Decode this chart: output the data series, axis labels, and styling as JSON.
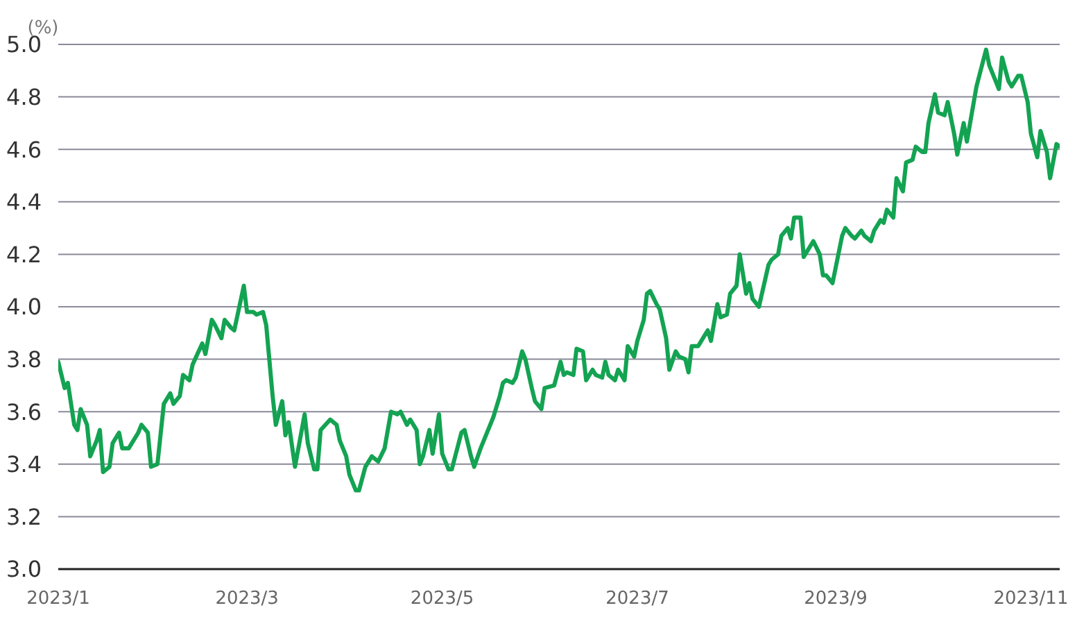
{
  "chart_data": {
    "type": "line",
    "ylabel": "(%)",
    "x": [
      "2023-01-01",
      "2023-01-03",
      "2023-01-04",
      "2023-01-06",
      "2023-01-07",
      "2023-01-08",
      "2023-01-10",
      "2023-01-11",
      "2023-01-13",
      "2023-01-14",
      "2023-01-15",
      "2023-01-17",
      "2023-01-18",
      "2023-01-20",
      "2023-01-21",
      "2023-01-23",
      "2023-01-26",
      "2023-01-27",
      "2023-01-29",
      "2023-01-30",
      "2023-02-01",
      "2023-02-03",
      "2023-02-05",
      "2023-02-06",
      "2023-02-08",
      "2023-02-09",
      "2023-02-11",
      "2023-02-12",
      "2023-02-15",
      "2023-02-16",
      "2023-02-18",
      "2023-02-19",
      "2023-02-21",
      "2023-02-22",
      "2023-02-24",
      "2023-02-25",
      "2023-02-28",
      "2023-03-01",
      "2023-03-03",
      "2023-03-04",
      "2023-03-06",
      "2023-03-07",
      "2023-03-09",
      "2023-03-10",
      "2023-03-12",
      "2023-03-13",
      "2023-03-14",
      "2023-03-16",
      "2023-03-19",
      "2023-03-20",
      "2023-03-22",
      "2023-03-23",
      "2023-03-24",
      "2023-03-27",
      "2023-03-29",
      "2023-03-30",
      "2023-04-01",
      "2023-04-02",
      "2023-04-04",
      "2023-04-05",
      "2023-04-07",
      "2023-04-09",
      "2023-04-11",
      "2023-04-13",
      "2023-04-15",
      "2023-04-17",
      "2023-04-18",
      "2023-04-20",
      "2023-04-21",
      "2023-04-23",
      "2023-04-24",
      "2023-04-25",
      "2023-04-27",
      "2023-04-28",
      "2023-04-30",
      "2023-05-01",
      "2023-05-03",
      "2023-05-04",
      "2023-05-07",
      "2023-05-08",
      "2023-05-10",
      "2023-05-11",
      "2023-05-13",
      "2023-05-17",
      "2023-05-19",
      "2023-05-20",
      "2023-05-21",
      "2023-05-23",
      "2023-05-24",
      "2023-05-26",
      "2023-05-27",
      "2023-05-29",
      "2023-05-30",
      "2023-06-01",
      "2023-06-02",
      "2023-06-05",
      "2023-06-07",
      "2023-06-08",
      "2023-06-09",
      "2023-06-11",
      "2023-06-12",
      "2023-06-14",
      "2023-06-15",
      "2023-06-17",
      "2023-06-18",
      "2023-06-20",
      "2023-06-21",
      "2023-06-22",
      "2023-06-24",
      "2023-06-25",
      "2023-06-27",
      "2023-06-28",
      "2023-06-30",
      "2023-07-01",
      "2023-07-03",
      "2023-07-04",
      "2023-07-05",
      "2023-07-07",
      "2023-07-08",
      "2023-07-10",
      "2023-07-11",
      "2023-07-13",
      "2023-07-14",
      "2023-07-16",
      "2023-07-17",
      "2023-07-18",
      "2023-07-20",
      "2023-07-21",
      "2023-07-23",
      "2023-07-24",
      "2023-07-26",
      "2023-07-27",
      "2023-07-29",
      "2023-07-30",
      "2023-08-01",
      "2023-08-02",
      "2023-08-04",
      "2023-08-05",
      "2023-08-06",
      "2023-08-08",
      "2023-08-11",
      "2023-08-12",
      "2023-08-14",
      "2023-08-15",
      "2023-08-17",
      "2023-08-18",
      "2023-08-19",
      "2023-08-21",
      "2023-08-22",
      "2023-08-24",
      "2023-08-25",
      "2023-08-27",
      "2023-08-28",
      "2023-08-29",
      "2023-08-31",
      "2023-09-03",
      "2023-09-04",
      "2023-09-06",
      "2023-09-07",
      "2023-09-09",
      "2023-09-10",
      "2023-09-12",
      "2023-09-13",
      "2023-09-15",
      "2023-09-16",
      "2023-09-17",
      "2023-09-19",
      "2023-09-20",
      "2023-09-22",
      "2023-09-23",
      "2023-09-25",
      "2023-09-26",
      "2023-09-28",
      "2023-09-29",
      "2023-09-30",
      "2023-10-02",
      "2023-10-03",
      "2023-10-05",
      "2023-10-06",
      "2023-10-08",
      "2023-10-09",
      "2023-10-11",
      "2023-10-12",
      "2023-10-13",
      "2023-10-15",
      "2023-10-18",
      "2023-10-19",
      "2023-10-21",
      "2023-10-22",
      "2023-10-23",
      "2023-10-25",
      "2023-10-26",
      "2023-10-28",
      "2023-10-29",
      "2023-10-31",
      "2023-11-01",
      "2023-11-03",
      "2023-11-04",
      "2023-11-06",
      "2023-11-07",
      "2023-11-09",
      "2023-11-10"
    ],
    "series": [
      {
        "color": "#13a352",
        "values": [
          3.79,
          3.69,
          3.71,
          3.55,
          3.53,
          3.61,
          3.55,
          3.43,
          3.49,
          3.53,
          3.37,
          3.39,
          3.48,
          3.52,
          3.46,
          3.46,
          3.52,
          3.55,
          3.52,
          3.39,
          3.4,
          3.63,
          3.67,
          3.63,
          3.66,
          3.74,
          3.72,
          3.78,
          3.86,
          3.82,
          3.95,
          3.93,
          3.88,
          3.95,
          3.92,
          3.91,
          4.08,
          3.98,
          3.98,
          3.97,
          3.98,
          3.93,
          3.66,
          3.55,
          3.64,
          3.51,
          3.56,
          3.39,
          3.59,
          3.48,
          3.38,
          3.38,
          3.53,
          3.57,
          3.55,
          3.49,
          3.43,
          3.36,
          3.3,
          3.3,
          3.39,
          3.43,
          3.41,
          3.46,
          3.6,
          3.59,
          3.6,
          3.55,
          3.57,
          3.53,
          3.4,
          3.43,
          3.53,
          3.44,
          3.59,
          3.44,
          3.38,
          3.38,
          3.52,
          3.53,
          3.43,
          3.39,
          3.46,
          3.58,
          3.66,
          3.71,
          3.72,
          3.71,
          3.73,
          3.83,
          3.8,
          3.69,
          3.64,
          3.61,
          3.69,
          3.7,
          3.79,
          3.74,
          3.75,
          3.74,
          3.84,
          3.83,
          3.72,
          3.76,
          3.74,
          3.73,
          3.79,
          3.74,
          3.72,
          3.76,
          3.72,
          3.85,
          3.81,
          3.87,
          3.95,
          4.05,
          4.06,
          4.01,
          3.99,
          3.88,
          3.76,
          3.83,
          3.81,
          3.8,
          3.75,
          3.85,
          3.85,
          3.87,
          3.91,
          3.87,
          4.01,
          3.96,
          3.97,
          4.05,
          4.08,
          4.2,
          4.05,
          4.09,
          4.03,
          4.0,
          4.16,
          4.18,
          4.2,
          4.27,
          4.3,
          4.26,
          4.34,
          4.34,
          4.19,
          4.23,
          4.25,
          4.2,
          4.12,
          4.12,
          4.09,
          4.27,
          4.3,
          4.27,
          4.26,
          4.29,
          4.27,
          4.25,
          4.29,
          4.33,
          4.32,
          4.37,
          4.34,
          4.49,
          4.44,
          4.55,
          4.56,
          4.61,
          4.59,
          4.59,
          4.7,
          4.81,
          4.74,
          4.73,
          4.78,
          4.66,
          4.58,
          4.7,
          4.63,
          4.7,
          4.84,
          4.98,
          4.92,
          4.86,
          4.83,
          4.95,
          4.86,
          4.84,
          4.88,
          4.88,
          4.78,
          4.66,
          4.57,
          4.67,
          4.59,
          4.49,
          4.62,
          4.61
        ]
      }
    ],
    "xlim": [
      "2023-01-01",
      "2023-11-10"
    ],
    "xticks": [
      {
        "value": "2023-01-01",
        "label": "2023/1"
      },
      {
        "value": "2023-03-01",
        "label": "2023/3"
      },
      {
        "value": "2023-05-01",
        "label": "2023/5"
      },
      {
        "value": "2023-07-01",
        "label": "2023/7"
      },
      {
        "value": "2023-09-01",
        "label": "2023/9"
      },
      {
        "value": "2023-11-01",
        "label": "2023/11"
      }
    ],
    "ylim": [
      3.0,
      5.0
    ],
    "yticks": [
      {
        "value": 3.0,
        "label": "3.0"
      },
      {
        "value": 3.2,
        "label": "3.2"
      },
      {
        "value": 3.4,
        "label": "3.4"
      },
      {
        "value": 3.6,
        "label": "3.6"
      },
      {
        "value": 3.8,
        "label": "3.8"
      },
      {
        "value": 4.0,
        "label": "4.0"
      },
      {
        "value": 4.2,
        "label": "4.2"
      },
      {
        "value": 4.4,
        "label": "4.4"
      },
      {
        "value": 4.6,
        "label": "4.6"
      },
      {
        "value": 4.8,
        "label": "4.8"
      },
      {
        "value": 5.0,
        "label": "5.0"
      }
    ],
    "grid": "y",
    "marker": "none",
    "line_style": "solid"
  }
}
